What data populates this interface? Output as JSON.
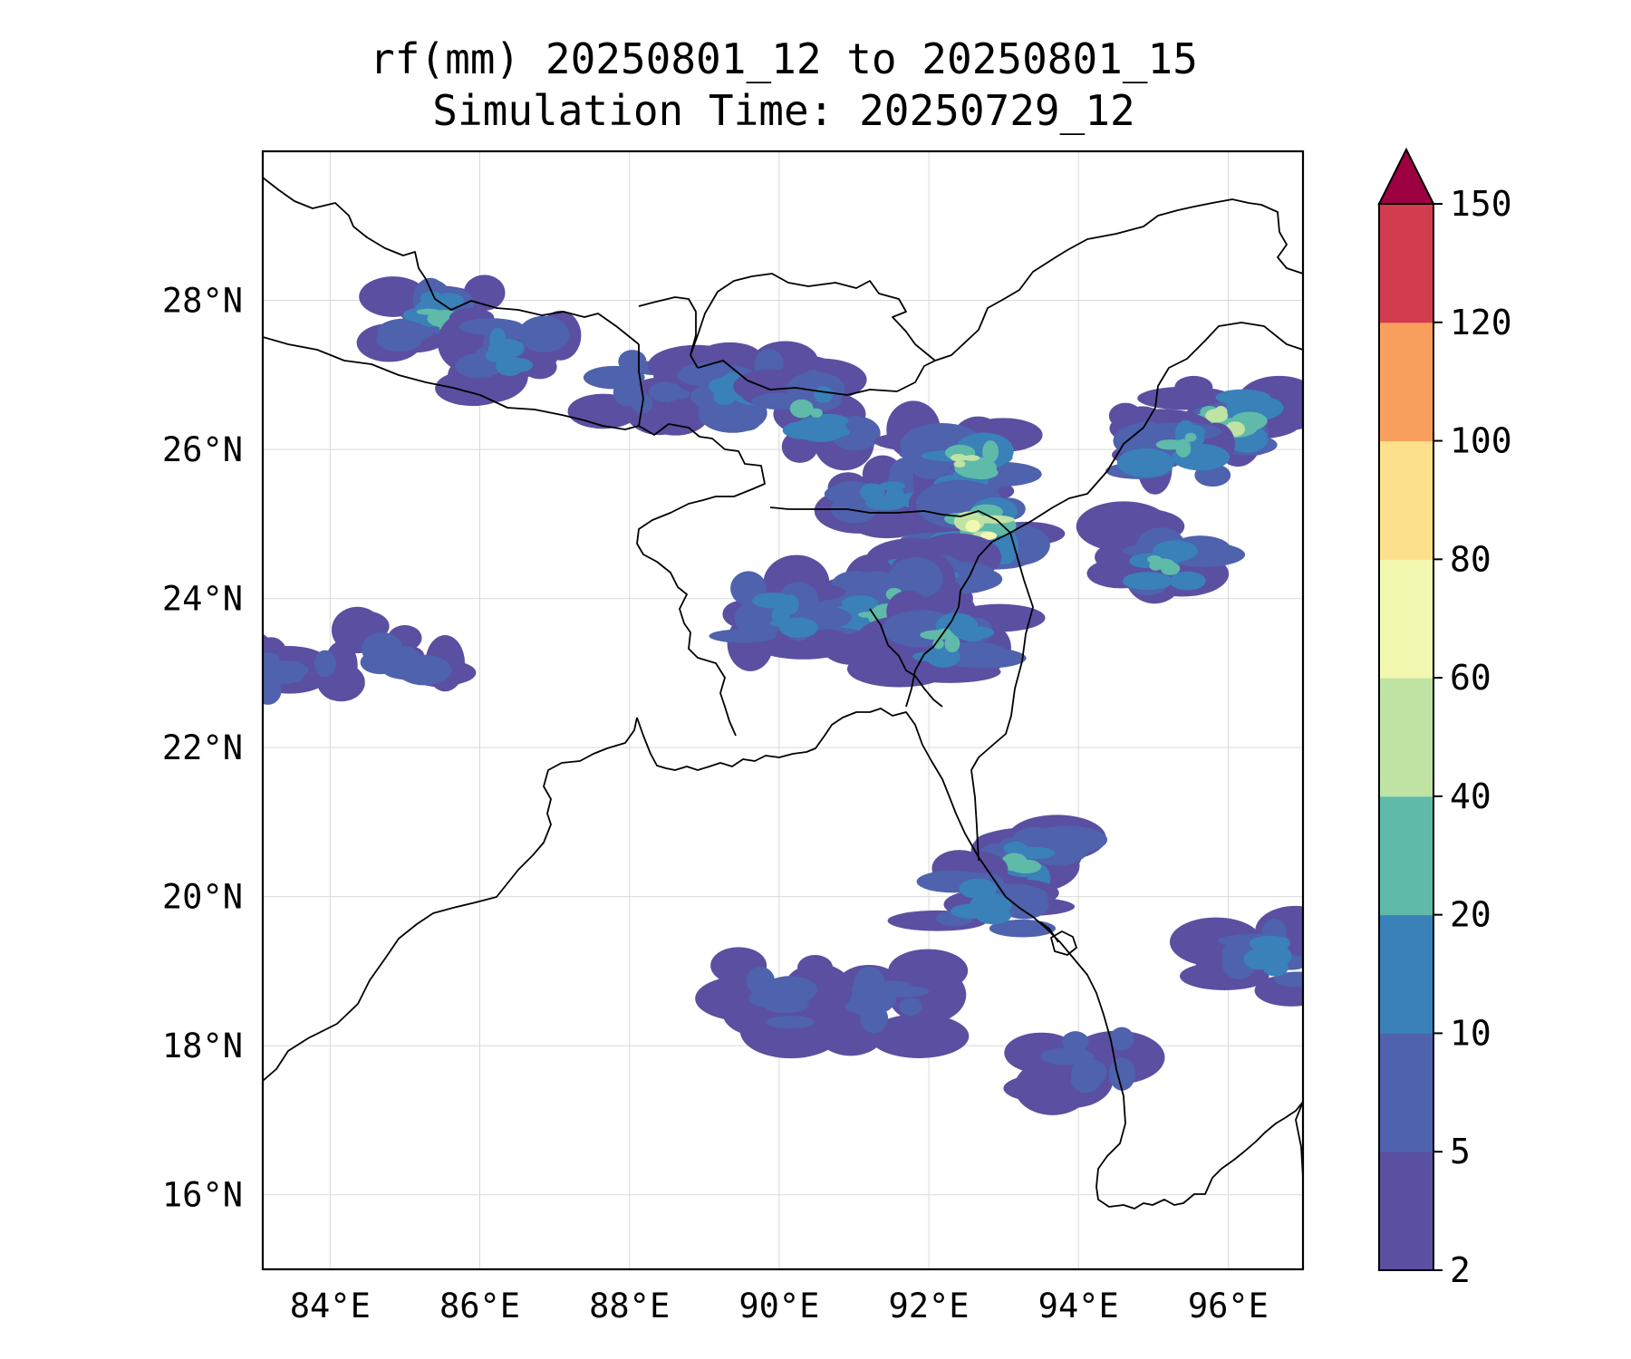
{
  "title": {
    "line1": "rf(mm) 20250801_12 to 20250801_15",
    "line2": "Simulation Time: 20250729_12"
  },
  "map": {
    "lon_range": [
      83.1,
      97.0
    ],
    "lat_range": [
      15.0,
      30.0
    ],
    "x_ticks": [
      "84°E",
      "86°E",
      "88°E",
      "90°E",
      "92°E",
      "94°E",
      "96°E"
    ],
    "y_ticks": [
      "16°N",
      "18°N",
      "20°N",
      "22°N",
      "24°N",
      "26°N",
      "28°N"
    ],
    "grid": true
  },
  "colorbar": {
    "levels": [
      "2",
      "5",
      "10",
      "20",
      "40",
      "60",
      "80",
      "100",
      "120",
      "150"
    ],
    "colors": [
      "#5b4fa1",
      "#4e62ad",
      "#3a80b9",
      "#5fbaa9",
      "#bfe3a3",
      "#f2f8b0",
      "#fce08b",
      "#f89f5d",
      "#d33c4f"
    ],
    "extend_color": "#9e0142",
    "extend": "max"
  },
  "chart_data": {
    "type": "heatmap",
    "title": "rf(mm) 20250801_12 to 20250801_15",
    "subtitle": "Simulation Time: 20250729_12",
    "variable_units": "mm",
    "x_range": [
      83.1,
      97.0
    ],
    "y_range": [
      15.0,
      30.0
    ],
    "colorbar_levels": [
      2,
      5,
      10,
      20,
      40,
      60,
      80,
      100,
      120,
      150
    ],
    "rain_cells": [
      {
        "lon": 85.4,
        "lat": 27.8,
        "level": 20
      },
      {
        "lon": 86.5,
        "lat": 27.3,
        "level": 10
      },
      {
        "lon": 88.2,
        "lat": 26.9,
        "level": 5
      },
      {
        "lon": 89.5,
        "lat": 26.8,
        "level": 10
      },
      {
        "lon": 90.5,
        "lat": 26.5,
        "level": 20
      },
      {
        "lon": 91.5,
        "lat": 25.4,
        "level": 10
      },
      {
        "lon": 92.5,
        "lat": 25.8,
        "level": 40
      },
      {
        "lon": 92.7,
        "lat": 24.9,
        "level": 60
      },
      {
        "lon": 92.1,
        "lat": 24.2,
        "level": 20
      },
      {
        "lon": 91.3,
        "lat": 23.9,
        "level": 20
      },
      {
        "lon": 90.0,
        "lat": 23.8,
        "level": 10
      },
      {
        "lon": 92.3,
        "lat": 23.4,
        "level": 20
      },
      {
        "lon": 96.0,
        "lat": 26.4,
        "level": 40
      },
      {
        "lon": 95.3,
        "lat": 26.0,
        "level": 20
      },
      {
        "lon": 95.2,
        "lat": 24.5,
        "level": 20
      },
      {
        "lon": 93.3,
        "lat": 20.5,
        "level": 20
      },
      {
        "lon": 92.8,
        "lat": 19.9,
        "level": 10
      },
      {
        "lon": 96.5,
        "lat": 19.2,
        "level": 10
      },
      {
        "lon": 94.2,
        "lat": 17.8,
        "level": 5
      },
      {
        "lon": 91.5,
        "lat": 18.6,
        "level": 5
      },
      {
        "lon": 90.0,
        "lat": 18.6,
        "level": 5
      },
      {
        "lon": 85.0,
        "lat": 23.2,
        "level": 5
      },
      {
        "lon": 83.5,
        "lat": 23.0,
        "level": 5
      }
    ]
  }
}
